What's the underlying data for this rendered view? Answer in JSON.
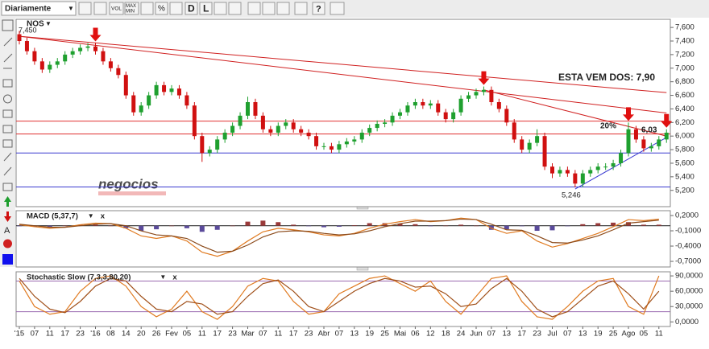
{
  "toolbar": {
    "period": "Diariamente",
    "buttons": [
      "VOL",
      "MAX",
      "MIN",
      "%",
      "D",
      "L",
      "?"
    ],
    "tool": "A"
  },
  "ui": {
    "dropdown": "▼",
    "close": "x"
  },
  "chart_data": [
    {
      "type": "candlestick",
      "title": "NOS",
      "up_color": "#1fa02f",
      "down_color": "#d01010",
      "ylim": [
        4.96,
        7.72
      ],
      "yticks": [
        {
          "value": 7.6,
          "label": "7,600"
        },
        {
          "value": 7.4,
          "label": "7,400"
        },
        {
          "value": 7.2,
          "label": "7,200"
        },
        {
          "value": 7.0,
          "label": "7,000"
        },
        {
          "value": 6.8,
          "label": "6,800"
        },
        {
          "value": 6.6,
          "label": "6,600"
        },
        {
          "value": 6.4,
          "label": "6,400"
        },
        {
          "value": 6.2,
          "label": "6,200"
        },
        {
          "value": 6.0,
          "label": "6,000"
        },
        {
          "value": 5.8,
          "label": "5,800"
        },
        {
          "value": 5.6,
          "label": "5,600"
        },
        {
          "value": 5.4,
          "label": "5,400"
        },
        {
          "value": 5.2,
          "label": "5,200"
        }
      ],
      "open": [
        7.5,
        7.4,
        7.25,
        7.1,
        6.98,
        7.05,
        7.1,
        7.2,
        7.25,
        7.3,
        7.32,
        7.25,
        7.1,
        7.0,
        6.9,
        6.6,
        6.35,
        6.45,
        6.6,
        6.75,
        6.65,
        6.7,
        6.6,
        6.45,
        6.0,
        5.75,
        5.8,
        5.95,
        6.05,
        6.15,
        6.3,
        6.5,
        6.3,
        6.1,
        6.05,
        6.15,
        6.2,
        6.1,
        6.05,
        6.0,
        5.85,
        5.85,
        5.8,
        5.88,
        5.92,
        5.95,
        6.05,
        6.12,
        6.18,
        6.2,
        6.3,
        6.35,
        6.45,
        6.5,
        6.45,
        6.48,
        6.35,
        6.25,
        6.35,
        6.55,
        6.6,
        6.65,
        6.68,
        6.5,
        6.4,
        6.2,
        5.95,
        5.8,
        5.9,
        6.0,
        5.55,
        5.45,
        5.5,
        5.45,
        5.3,
        5.45,
        5.5,
        5.55,
        5.55,
        5.6,
        5.75,
        6.1,
        5.95,
        5.82,
        5.85,
        5.95
      ],
      "high": [
        7.55,
        7.45,
        7.3,
        7.15,
        7.1,
        7.15,
        7.25,
        7.3,
        7.35,
        7.37,
        7.37,
        7.3,
        7.15,
        7.05,
        6.95,
        6.65,
        6.5,
        6.65,
        6.8,
        6.8,
        6.75,
        6.75,
        6.65,
        6.5,
        6.05,
        5.85,
        6.0,
        6.1,
        6.2,
        6.35,
        6.58,
        6.55,
        6.35,
        6.15,
        6.2,
        6.25,
        6.25,
        6.15,
        6.1,
        6.05,
        5.9,
        5.9,
        5.93,
        5.97,
        6.0,
        6.1,
        6.17,
        6.23,
        6.25,
        6.35,
        6.4,
        6.5,
        6.55,
        6.55,
        6.53,
        6.53,
        6.4,
        6.4,
        6.6,
        6.65,
        6.7,
        6.73,
        6.73,
        6.55,
        6.45,
        6.25,
        6.0,
        5.95,
        6.1,
        6.05,
        5.6,
        5.55,
        5.55,
        5.5,
        5.5,
        5.55,
        5.6,
        5.6,
        5.65,
        5.8,
        6.2,
        6.15,
        6.0,
        5.9,
        6.0,
        6.1
      ],
      "low": [
        7.35,
        7.2,
        7.05,
        6.93,
        6.93,
        7.0,
        7.05,
        7.15,
        7.2,
        7.25,
        7.2,
        7.05,
        6.95,
        6.85,
        6.55,
        6.3,
        6.3,
        6.4,
        6.55,
        6.6,
        6.6,
        6.55,
        6.4,
        5.95,
        5.62,
        5.7,
        5.75,
        5.9,
        6.0,
        6.1,
        6.25,
        6.25,
        6.05,
        6.0,
        6.0,
        6.1,
        6.05,
        6.0,
        5.95,
        5.8,
        5.8,
        5.75,
        5.75,
        5.83,
        5.87,
        5.9,
        6.0,
        6.07,
        6.13,
        6.15,
        6.25,
        6.3,
        6.4,
        6.4,
        6.4,
        6.3,
        6.2,
        6.2,
        6.3,
        6.5,
        6.55,
        6.6,
        6.45,
        6.35,
        6.15,
        5.9,
        5.75,
        5.75,
        5.85,
        5.5,
        5.38,
        5.4,
        5.4,
        5.246,
        5.25,
        5.4,
        5.45,
        5.5,
        5.5,
        5.55,
        5.7,
        5.9,
        5.77,
        5.77,
        5.8,
        5.9
      ],
      "close": [
        7.4,
        7.25,
        7.1,
        6.98,
        7.05,
        7.1,
        7.2,
        7.25,
        7.3,
        7.32,
        7.25,
        7.1,
        7.0,
        6.9,
        6.6,
        6.35,
        6.45,
        6.6,
        6.75,
        6.65,
        6.7,
        6.6,
        6.45,
        6.0,
        5.75,
        5.8,
        5.95,
        6.05,
        6.15,
        6.3,
        6.5,
        6.3,
        6.1,
        6.05,
        6.15,
        6.2,
        6.1,
        6.05,
        6.0,
        5.85,
        5.85,
        5.8,
        5.88,
        5.92,
        5.95,
        6.05,
        6.12,
        6.18,
        6.2,
        6.3,
        6.35,
        6.45,
        6.5,
        6.45,
        6.48,
        6.35,
        6.25,
        6.35,
        6.55,
        6.6,
        6.65,
        6.68,
        6.5,
        6.4,
        6.2,
        5.95,
        5.8,
        5.9,
        6.0,
        5.55,
        5.45,
        5.5,
        5.45,
        5.3,
        5.45,
        5.5,
        5.55,
        5.55,
        5.6,
        5.75,
        6.1,
        5.95,
        5.82,
        5.85,
        5.95,
        6.05
      ],
      "hlines": [
        {
          "value": 6.22,
          "color": "#e03030"
        },
        {
          "value": 6.03,
          "color": "#e03030"
        },
        {
          "value": 5.75,
          "color": "#3a3ad0"
        },
        {
          "value": 5.25,
          "color": "#3a3ad0"
        }
      ],
      "trendlines": [
        {
          "from": [
            0,
            7.47
          ],
          "to": [
            85,
            6.64
          ],
          "color": "#d02020"
        },
        {
          "from": [
            0,
            7.47
          ],
          "to": [
            85,
            6.34
          ],
          "color": "#d02020"
        },
        {
          "from": [
            61,
            6.68
          ],
          "to": [
            85,
            6.0
          ],
          "color": "#d02020"
        },
        {
          "from": [
            73,
            5.22
          ],
          "to": [
            85,
            5.98
          ],
          "color": "#3a3ad0"
        }
      ],
      "arrows": [
        10,
        61,
        80,
        85
      ],
      "arrow_color": "#e01010",
      "annotations": [
        {
          "text": "7,450",
          "color": "#222"
        },
        {
          "text": "ESTA VEM DOS: 7,90",
          "color": "#e01010"
        },
        {
          "text": "20%",
          "color": "#2233cc"
        },
        {
          "text": "6,03",
          "color": "#e01010"
        },
        {
          "text": "5,246",
          "color": "#222"
        }
      ],
      "watermark": "negocios"
    },
    {
      "type": "combo",
      "title": "MACD (5,37,7)",
      "ylim": [
        -0.81,
        0.295
      ],
      "yticks": [
        {
          "value": 0.2,
          "label": "0,2000"
        },
        {
          "value": -0.1,
          "label": "-0,1000"
        },
        {
          "value": -0.4,
          "label": "-0,4000"
        },
        {
          "value": -0.7,
          "label": "-0,7000"
        }
      ],
      "x": [
        0,
        2,
        4,
        6,
        8,
        10,
        12,
        14,
        16,
        18,
        20,
        22,
        24,
        26,
        28,
        30,
        32,
        34,
        36,
        38,
        40,
        42,
        44,
        46,
        48,
        50,
        52,
        54,
        56,
        58,
        60,
        62,
        64,
        66,
        68,
        70,
        72,
        74,
        76,
        78,
        80,
        82,
        84
      ],
      "series": [
        {
          "kind": "bar",
          "color": "#9a3a3a",
          "negative_color": "#5a4a9a",
          "values": [
            -0.01,
            -0.02,
            -0.02,
            0,
            0.02,
            0.02,
            0,
            -0.05,
            -0.1,
            -0.07,
            0,
            -0.05,
            -0.12,
            -0.08,
            0,
            0.08,
            0.1,
            0.07,
            0.02,
            -0.01,
            -0.03,
            -0.02,
            0.01,
            0.05,
            0.05,
            0.04,
            0.03,
            -0.01,
            0,
            0.02,
            0,
            -0.08,
            -0.07,
            -0.01,
            -0.1,
            -0.09,
            -0.01,
            0.03,
            0.05,
            0.06,
            0.07,
            0.02,
            0.02
          ]
        },
        {
          "kind": "line",
          "color": "#e07a20",
          "values": [
            0.02,
            -0.02,
            -0.05,
            -0.03,
            0.02,
            0.05,
            0.04,
            -0.05,
            -0.2,
            -0.25,
            -0.2,
            -0.3,
            -0.52,
            -0.6,
            -0.5,
            -0.3,
            -0.12,
            -0.05,
            -0.08,
            -0.12,
            -0.18,
            -0.2,
            -0.15,
            -0.05,
            0.03,
            0.08,
            0.12,
            0.08,
            0.1,
            0.15,
            0.12,
            -0.05,
            -0.15,
            -0.1,
            -0.3,
            -0.42,
            -0.35,
            -0.25,
            -0.15,
            -0.02,
            0.12,
            0.1,
            0.13
          ]
        },
        {
          "kind": "line",
          "color": "#8b4a1a",
          "values": [
            0.03,
            0.0,
            -0.03,
            -0.03,
            0.0,
            0.03,
            0.04,
            0.0,
            -0.1,
            -0.18,
            -0.2,
            -0.25,
            -0.4,
            -0.52,
            -0.5,
            -0.38,
            -0.22,
            -0.12,
            -0.1,
            -0.11,
            -0.15,
            -0.18,
            -0.16,
            -0.1,
            -0.02,
            0.04,
            0.09,
            0.09,
            0.1,
            0.13,
            0.12,
            0.03,
            -0.08,
            -0.09,
            -0.2,
            -0.33,
            -0.34,
            -0.28,
            -0.2,
            -0.08,
            0.05,
            0.08,
            0.11
          ]
        }
      ],
      "zero_line": true
    },
    {
      "type": "line",
      "title": "Stochastic Slow (7,3,3,80,20)",
      "ylim": [
        -9,
        98
      ],
      "yticks": [
        {
          "value": 90,
          "label": "90,0000"
        },
        {
          "value": 60,
          "label": "60,0000"
        },
        {
          "value": 30,
          "label": "30,0000"
        },
        {
          "value": 0,
          "label": "0,0000"
        }
      ],
      "levels": [
        80,
        20
      ],
      "level_color": "#9a6ab0",
      "x": [
        0,
        2,
        4,
        6,
        8,
        10,
        12,
        14,
        16,
        18,
        20,
        22,
        24,
        26,
        28,
        30,
        32,
        34,
        36,
        38,
        40,
        42,
        44,
        46,
        48,
        50,
        52,
        54,
        56,
        58,
        60,
        62,
        64,
        66,
        68,
        70,
        72,
        74,
        76,
        78,
        80,
        82,
        84
      ],
      "series": [
        {
          "color": "#e07a20",
          "values": [
            80,
            30,
            15,
            20,
            60,
            85,
            90,
            70,
            30,
            10,
            25,
            60,
            20,
            5,
            30,
            70,
            85,
            80,
            40,
            15,
            20,
            55,
            70,
            85,
            90,
            75,
            60,
            80,
            40,
            15,
            50,
            85,
            90,
            40,
            10,
            5,
            30,
            60,
            80,
            85,
            30,
            15,
            90
          ]
        },
        {
          "color": "#a0501a",
          "values": [
            85,
            50,
            25,
            18,
            40,
            70,
            85,
            80,
            50,
            25,
            20,
            40,
            35,
            15,
            20,
            50,
            75,
            82,
            60,
            30,
            20,
            40,
            60,
            75,
            85,
            80,
            68,
            70,
            55,
            30,
            35,
            65,
            85,
            60,
            25,
            10,
            20,
            45,
            70,
            80,
            55,
            25,
            60
          ]
        }
      ],
      "xticks": [
        {
          "value": 0,
          "label": "'15"
        },
        {
          "value": 2,
          "label": "07"
        },
        {
          "value": 4,
          "label": "11"
        },
        {
          "value": 6,
          "label": "17"
        },
        {
          "value": 8,
          "label": "23"
        },
        {
          "value": 10,
          "label": "'16"
        },
        {
          "value": 12,
          "label": "08"
        },
        {
          "value": 14,
          "label": "14"
        },
        {
          "value": 16,
          "label": "20"
        },
        {
          "value": 18,
          "label": "26"
        },
        {
          "value": 20,
          "label": "Fev"
        },
        {
          "value": 22,
          "label": "05"
        },
        {
          "value": 24,
          "label": "11"
        },
        {
          "value": 26,
          "label": "17"
        },
        {
          "value": 28,
          "label": "23"
        },
        {
          "value": 30,
          "label": "Mar"
        },
        {
          "value": 32,
          "label": "07"
        },
        {
          "value": 34,
          "label": "11"
        },
        {
          "value": 36,
          "label": "17"
        },
        {
          "value": 38,
          "label": "23"
        },
        {
          "value": 40,
          "label": "Abr"
        },
        {
          "value": 42,
          "label": "07"
        },
        {
          "value": 44,
          "label": "13"
        },
        {
          "value": 46,
          "label": "19"
        },
        {
          "value": 48,
          "label": "25"
        },
        {
          "value": 50,
          "label": "Mai"
        },
        {
          "value": 52,
          "label": "06"
        },
        {
          "value": 54,
          "label": "12"
        },
        {
          "value": 56,
          "label": "18"
        },
        {
          "value": 58,
          "label": "24"
        },
        {
          "value": 60,
          "label": "Jun"
        },
        {
          "value": 62,
          "label": "07"
        },
        {
          "value": 64,
          "label": "13"
        },
        {
          "value": 66,
          "label": "17"
        },
        {
          "value": 68,
          "label": "23"
        },
        {
          "value": 70,
          "label": "Jul"
        },
        {
          "value": 72,
          "label": "07"
        },
        {
          "value": 74,
          "label": "13"
        },
        {
          "value": 76,
          "label": "19"
        },
        {
          "value": 78,
          "label": "25"
        },
        {
          "value": 80,
          "label": "Ago"
        },
        {
          "value": 82,
          "label": "05"
        },
        {
          "value": 84,
          "label": "11"
        }
      ]
    }
  ]
}
